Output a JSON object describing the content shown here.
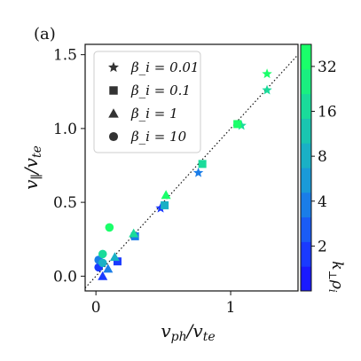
{
  "chart_data": {
    "type": "scatter",
    "panel_label": "(a)",
    "xlabel": "v_ph/v_te",
    "ylabel": "v_∥/v_te",
    "xlim": [
      -0.08,
      1.5
    ],
    "ylim": [
      -0.1,
      1.57
    ],
    "xticks": [
      0,
      1
    ],
    "yticks": [
      0.0,
      0.5,
      1.0,
      1.5
    ],
    "xtick_labels": [
      "0",
      "1"
    ],
    "ytick_labels": [
      "0.0",
      "0.5",
      "1.0",
      "1.5"
    ],
    "grid": false,
    "reference_line": {
      "style": "dotted",
      "slope": 1,
      "intercept": 0
    },
    "legend_position": "top-left",
    "legend": [
      {
        "marker": "star",
        "label": "β_i = 0.01"
      },
      {
        "marker": "square",
        "label": "β_i = 0.1"
      },
      {
        "marker": "triangle",
        "label": "β_i = 1"
      },
      {
        "marker": "circle",
        "label": "β_i = 10"
      }
    ],
    "colorbar": {
      "label": "k_⊥ρ_i",
      "scale": "log",
      "tick_values": [
        2,
        4,
        8,
        16,
        32
      ],
      "tick_labels": [
        "2",
        "4",
        "8",
        "16",
        "32"
      ],
      "range": [
        1,
        45
      ],
      "colors": [
        "#1a1aff",
        "#1a3aff",
        "#1a5cf5",
        "#1a7de8",
        "#1a9ad8",
        "#1ab0c5",
        "#1ac5b0",
        "#1adb9a",
        "#1aef80",
        "#1aff6a"
      ]
    },
    "series": [
      {
        "marker": "star",
        "points": [
          {
            "x": 0.48,
            "y": 0.46,
            "c": 2
          },
          {
            "x": 0.76,
            "y": 0.7,
            "c": 4
          },
          {
            "x": 1.08,
            "y": 1.02,
            "c": 16
          },
          {
            "x": 1.27,
            "y": 1.26,
            "c": 16
          },
          {
            "x": 1.27,
            "y": 1.37,
            "c": 32
          }
        ]
      },
      {
        "marker": "square",
        "points": [
          {
            "x": 0.16,
            "y": 0.1,
            "c": 2
          },
          {
            "x": 0.29,
            "y": 0.27,
            "c": 4
          },
          {
            "x": 0.51,
            "y": 0.48,
            "c": 8
          },
          {
            "x": 0.79,
            "y": 0.76,
            "c": 16
          },
          {
            "x": 1.05,
            "y": 1.03,
            "c": 32
          }
        ]
      },
      {
        "marker": "triangle",
        "points": [
          {
            "x": 0.05,
            "y": 0.0,
            "c": 2
          },
          {
            "x": 0.09,
            "y": 0.05,
            "c": 4
          },
          {
            "x": 0.14,
            "y": 0.13,
            "c": 8
          },
          {
            "x": 0.28,
            "y": 0.29,
            "c": 16
          },
          {
            "x": 0.52,
            "y": 0.55,
            "c": 32
          }
        ]
      },
      {
        "marker": "circle",
        "points": [
          {
            "x": 0.02,
            "y": 0.06,
            "c": 2
          },
          {
            "x": 0.02,
            "y": 0.11,
            "c": 4
          },
          {
            "x": 0.05,
            "y": 0.09,
            "c": 8
          },
          {
            "x": 0.05,
            "y": 0.15,
            "c": 16
          },
          {
            "x": 0.1,
            "y": 0.33,
            "c": 32
          }
        ]
      }
    ]
  }
}
